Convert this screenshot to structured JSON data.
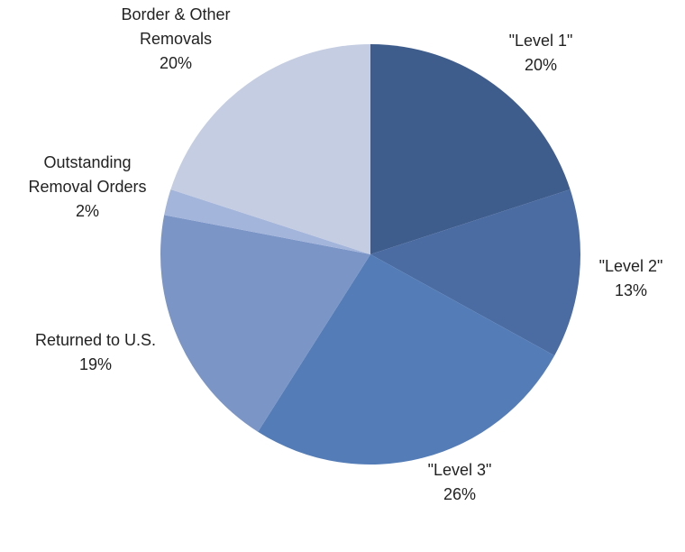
{
  "chart_data": {
    "type": "pie",
    "categories": [
      "\"Level 1\"",
      "\"Level 2\"",
      "\"Level 3\"",
      "Returned to U.S.",
      "Outstanding Removal Orders",
      "Border & Other Removals"
    ],
    "values": [
      20,
      13,
      26,
      19,
      2,
      20
    ],
    "value_labels": [
      "20%",
      "13%",
      "26%",
      "19%",
      "2%",
      "20%"
    ],
    "colors": [
      "#3e5c8c",
      "#4a6ca3",
      "#547db8",
      "#7a95c6",
      "#a4b5db",
      "#c4cde2"
    ]
  }
}
